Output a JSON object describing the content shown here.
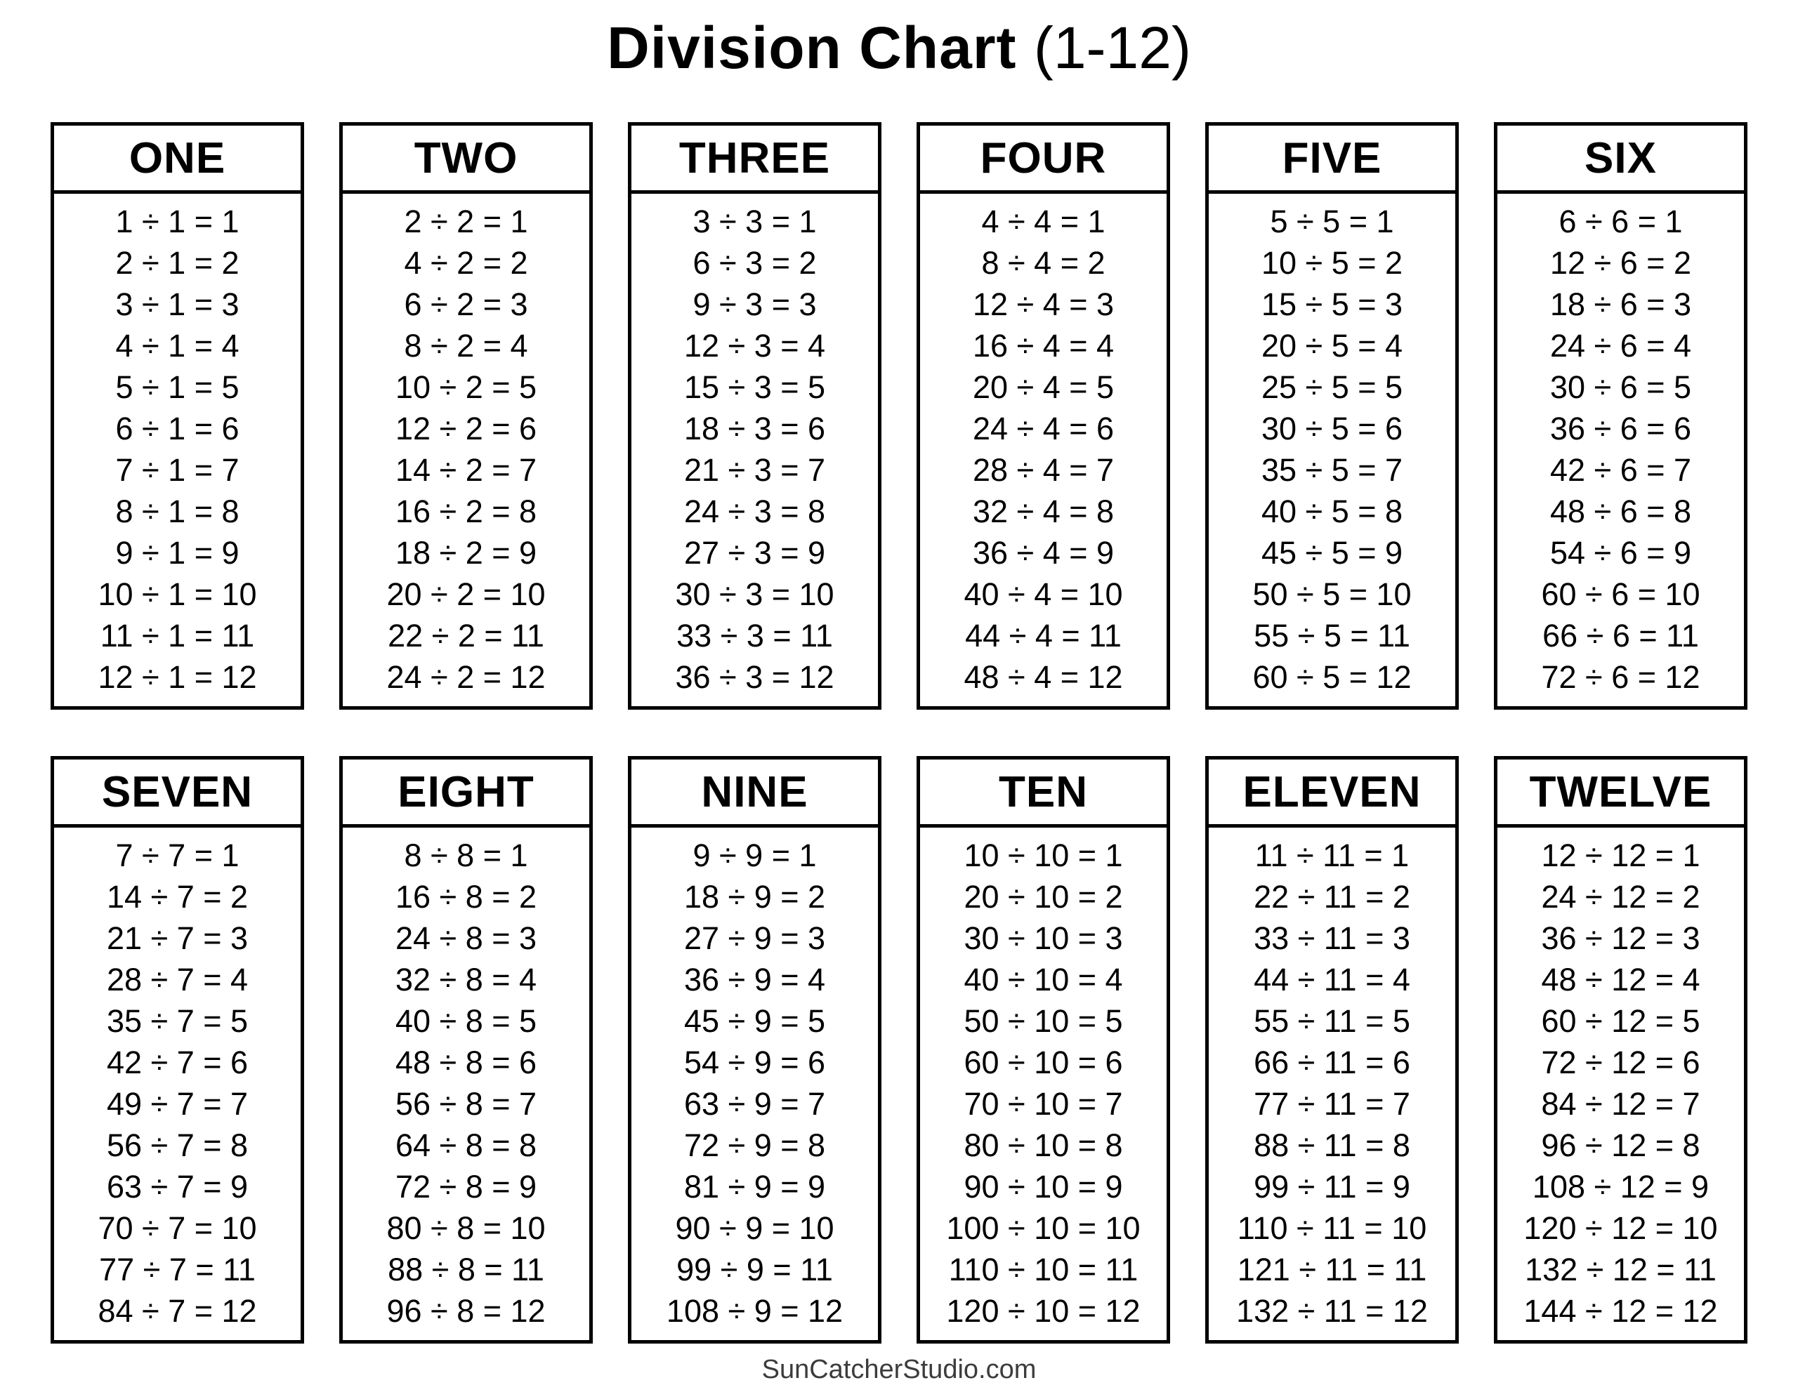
{
  "title": {
    "bold": "Division Chart",
    "range": "(1-12)"
  },
  "footer": {
    "credit": "SunCatcherStudio.com"
  },
  "colors": {
    "text": "#000000",
    "border": "#000000",
    "footer_text": "#3c3c3c",
    "background": "#ffffff"
  },
  "tables": [
    {
      "header": "ONE",
      "divisor": 1,
      "equations": [
        "1 ÷ 1 = 1",
        "2 ÷ 1 = 2",
        "3 ÷ 1 = 3",
        "4 ÷ 1 = 4",
        "5 ÷ 1 = 5",
        "6 ÷ 1 = 6",
        "7 ÷ 1 = 7",
        "8 ÷ 1 = 8",
        "9 ÷ 1 = 9",
        "10 ÷ 1 = 10",
        "11 ÷ 1 = 11",
        "12 ÷ 1 = 12"
      ]
    },
    {
      "header": "TWO",
      "divisor": 2,
      "equations": [
        "2 ÷ 2 = 1",
        "4 ÷ 2 = 2",
        "6 ÷ 2 = 3",
        "8 ÷ 2 = 4",
        "10 ÷ 2 = 5",
        "12 ÷ 2 = 6",
        "14 ÷ 2 = 7",
        "16 ÷ 2 = 8",
        "18 ÷ 2 = 9",
        "20 ÷ 2 = 10",
        "22 ÷ 2 = 11",
        "24 ÷ 2 = 12"
      ]
    },
    {
      "header": "THREE",
      "divisor": 3,
      "equations": [
        "3 ÷ 3 = 1",
        "6 ÷ 3 = 2",
        "9 ÷ 3 = 3",
        "12 ÷ 3 = 4",
        "15 ÷ 3 = 5",
        "18 ÷ 3 = 6",
        "21 ÷ 3 = 7",
        "24 ÷ 3 = 8",
        "27 ÷ 3 = 9",
        "30 ÷ 3 = 10",
        "33 ÷ 3 = 11",
        "36 ÷ 3 = 12"
      ]
    },
    {
      "header": "FOUR",
      "divisor": 4,
      "equations": [
        "4 ÷ 4 = 1",
        "8 ÷ 4 = 2",
        "12 ÷ 4 = 3",
        "16 ÷ 4 = 4",
        "20 ÷ 4 = 5",
        "24 ÷ 4 = 6",
        "28 ÷ 4 = 7",
        "32 ÷ 4 = 8",
        "36 ÷ 4 = 9",
        "40 ÷ 4 = 10",
        "44 ÷ 4 = 11",
        "48 ÷ 4 = 12"
      ]
    },
    {
      "header": "FIVE",
      "divisor": 5,
      "equations": [
        "5 ÷ 5 = 1",
        "10 ÷ 5 = 2",
        "15 ÷ 5 = 3",
        "20 ÷ 5 = 4",
        "25 ÷ 5 = 5",
        "30 ÷ 5 = 6",
        "35 ÷ 5 = 7",
        "40 ÷ 5 = 8",
        "45 ÷ 5 = 9",
        "50 ÷ 5 = 10",
        "55 ÷ 5 = 11",
        "60 ÷ 5 = 12"
      ]
    },
    {
      "header": "SIX",
      "divisor": 6,
      "equations": [
        "6 ÷ 6 = 1",
        "12 ÷ 6 = 2",
        "18 ÷ 6 = 3",
        "24 ÷ 6 = 4",
        "30 ÷ 6 = 5",
        "36 ÷ 6 = 6",
        "42 ÷ 6 = 7",
        "48 ÷ 6 = 8",
        "54 ÷ 6 = 9",
        "60 ÷ 6 = 10",
        "66 ÷ 6 = 11",
        "72 ÷ 6 = 12"
      ]
    },
    {
      "header": "SEVEN",
      "divisor": 7,
      "equations": [
        "7 ÷ 7 = 1",
        "14 ÷ 7 = 2",
        "21 ÷ 7 = 3",
        "28 ÷ 7 = 4",
        "35 ÷ 7 = 5",
        "42 ÷ 7 = 6",
        "49 ÷ 7 = 7",
        "56 ÷ 7 = 8",
        "63 ÷ 7 = 9",
        "70 ÷ 7 = 10",
        "77 ÷ 7 = 11",
        "84 ÷ 7 = 12"
      ]
    },
    {
      "header": "EIGHT",
      "divisor": 8,
      "equations": [
        "8 ÷ 8 = 1",
        "16 ÷ 8 = 2",
        "24 ÷ 8 = 3",
        "32 ÷ 8 = 4",
        "40 ÷ 8 = 5",
        "48 ÷ 8 = 6",
        "56 ÷ 8 = 7",
        "64 ÷ 8 = 8",
        "72 ÷ 8 = 9",
        "80 ÷ 8 = 10",
        "88 ÷ 8 = 11",
        "96 ÷ 8 = 12"
      ]
    },
    {
      "header": "NINE",
      "divisor": 9,
      "equations": [
        "9 ÷ 9 = 1",
        "18 ÷ 9 = 2",
        "27 ÷ 9 = 3",
        "36 ÷ 9 = 4",
        "45 ÷ 9 = 5",
        "54 ÷ 9 = 6",
        "63 ÷ 9 = 7",
        "72 ÷ 9 = 8",
        "81 ÷ 9 = 9",
        "90 ÷ 9 = 10",
        "99 ÷ 9 = 11",
        "108 ÷ 9 = 12"
      ]
    },
    {
      "header": "TEN",
      "divisor": 10,
      "equations": [
        "10 ÷ 10 = 1",
        "20 ÷ 10 = 2",
        "30 ÷ 10 = 3",
        "40 ÷ 10 = 4",
        "50 ÷ 10 = 5",
        "60 ÷ 10 = 6",
        "70 ÷ 10 = 7",
        "80 ÷ 10 = 8",
        "90 ÷ 10 = 9",
        "100 ÷ 10 = 10",
        "110 ÷ 10 = 11",
        "120 ÷ 10 = 12"
      ]
    },
    {
      "header": "ELEVEN",
      "divisor": 11,
      "equations": [
        "11 ÷ 11 = 1",
        "22 ÷ 11 = 2",
        "33 ÷ 11 = 3",
        "44 ÷ 11 = 4",
        "55 ÷ 11 = 5",
        "66 ÷ 11 = 6",
        "77 ÷ 11 = 7",
        "88 ÷ 11 = 8",
        "99 ÷ 11 = 9",
        "110 ÷ 11 = 10",
        "121 ÷ 11 = 11",
        "132 ÷ 11 = 12"
      ]
    },
    {
      "header": "TWELVE",
      "divisor": 12,
      "equations": [
        "12 ÷ 12 = 1",
        "24 ÷ 12 = 2",
        "36 ÷ 12 = 3",
        "48 ÷ 12 = 4",
        "60 ÷ 12 = 5",
        "72 ÷ 12 = 6",
        "84 ÷ 12 = 7",
        "96 ÷ 12 = 8",
        "108 ÷ 12 = 9",
        "120 ÷ 12 = 10",
        "132 ÷ 12 = 11",
        "144 ÷ 12 = 12"
      ]
    }
  ]
}
